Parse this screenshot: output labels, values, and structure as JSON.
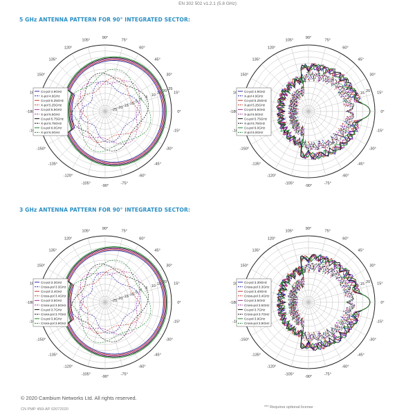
{
  "header": {
    "standard_note": "EN 302 502 v1.2.1 (5.8 GHz)"
  },
  "sections": [
    {
      "title": "5 GHz ANTENNA PATTERN FOR 90° INTEGRATED SECTOR:"
    },
    {
      "title": "3 GHz ANTENNA PATTERN FOR 90° INTEGRATED SECTOR:"
    }
  ],
  "chart_data": [
    {
      "type": "line",
      "polar": true,
      "band": "5GHz",
      "pattern": "sector",
      "angle_ticks": [
        "0°",
        "15°",
        "30°",
        "45°",
        "60°",
        "75°",
        "90°",
        "105°",
        "120°",
        "135°",
        "150°",
        "165°",
        "-180°",
        "-165°",
        "-150°",
        "-135°",
        "-120°",
        "-105°",
        "-90°",
        "-75°",
        "-60°",
        "-45°",
        "-30°",
        "-15°"
      ],
      "radial_ticks": [
        "25",
        "20",
        "15",
        "10",
        "5",
        "0",
        "-5",
        "-10",
        "-15",
        "-20",
        "-25"
      ],
      "rlim": [
        -30,
        25
      ],
      "grid": true,
      "legend_position": "left",
      "series": [
        {
          "name": "Co-pol 4.9GHz",
          "color": "#2a2aa8",
          "dash": "solid"
        },
        {
          "name": "X-pol 4.9GHz",
          "color": "#2a2aa8",
          "dash": "dashed"
        },
        {
          "name": "Co-pol 5.25GHz",
          "color": "#c0392b",
          "dash": "solid"
        },
        {
          "name": "X-pol 5.25GHz",
          "color": "#c0392b",
          "dash": "dashed"
        },
        {
          "name": "Co-pol 5.5GHz",
          "color": "#a0309e",
          "dash": "solid"
        },
        {
          "name": "X-pol 5.5GHz",
          "color": "#a0309e",
          "dash": "dashed"
        },
        {
          "name": "Co-pol 5.75GHz",
          "color": "#111111",
          "dash": "solid"
        },
        {
          "name": "X-pol 5.75GHz",
          "color": "#111111",
          "dash": "dashed"
        },
        {
          "name": "Co-pol 6.0GHz",
          "color": "#1f8a2f",
          "dash": "solid"
        },
        {
          "name": "X-pol 6.0GHz",
          "color": "#1f8a2f",
          "dash": "dashed"
        }
      ]
    },
    {
      "type": "line",
      "polar": true,
      "band": "5GHz",
      "pattern": "elevation",
      "angle_ticks": [
        "0°",
        "15°",
        "30°",
        "45°",
        "60°",
        "75°",
        "90°",
        "105°",
        "120°",
        "135°",
        "150°",
        "165°",
        "-180°",
        "-165°",
        "-150°",
        "-135°",
        "-120°",
        "-105°",
        "-90°",
        "-75°",
        "-60°",
        "-45°",
        "-30°",
        "-15°"
      ],
      "radial_ticks": [
        "20",
        "15",
        "10",
        "5",
        "0"
      ],
      "rlim": [
        -30,
        25
      ],
      "grid": true,
      "legend_position": "left",
      "series": [
        {
          "name": "Co-pol 4.9GHz",
          "color": "#2a2aa8",
          "dash": "solid"
        },
        {
          "name": "X-pol 4.9GHz",
          "color": "#2a2aa8",
          "dash": "dashed"
        },
        {
          "name": "Co-pol 5.25GHz",
          "color": "#c0392b",
          "dash": "solid"
        },
        {
          "name": "X-pol 5.25GHz",
          "color": "#c0392b",
          "dash": "dashed"
        },
        {
          "name": "Co-pol 5.5GHz",
          "color": "#a0309e",
          "dash": "solid"
        },
        {
          "name": "X-pol 5.5GHz",
          "color": "#a0309e",
          "dash": "dashed"
        },
        {
          "name": "Co-pol 5.75GHz",
          "color": "#111111",
          "dash": "solid"
        },
        {
          "name": "X-pol 5.75GHz",
          "color": "#111111",
          "dash": "dashed"
        },
        {
          "name": "Co-pol 6.0GHz",
          "color": "#1f8a2f",
          "dash": "solid"
        },
        {
          "name": "X-pol 6.0GHz",
          "color": "#1f8a2f",
          "dash": "dashed"
        }
      ]
    },
    {
      "type": "line",
      "polar": true,
      "band": "3GHz",
      "pattern": "sector",
      "angle_ticks": [
        "0°",
        "15°",
        "30°",
        "45°",
        "60°",
        "75°",
        "90°",
        "105°",
        "120°",
        "135°",
        "150°",
        "165°",
        "-180°",
        "-165°",
        "-150°",
        "-135°",
        "-120°",
        "-105°",
        "-90°",
        "-75°",
        "-60°",
        "-45°",
        "-30°",
        "-15°"
      ],
      "radial_ticks": [
        "20",
        "15",
        "10",
        "5",
        "0",
        "-5",
        "-10",
        "-15",
        "-20",
        "-25"
      ],
      "rlim": [
        -30,
        25
      ],
      "grid": true,
      "legend_position": "left",
      "series": [
        {
          "name": "Co-pol 3.3GHz",
          "color": "#2a2aa8",
          "dash": "solid"
        },
        {
          "name": "Cross-pol 3.3GHz",
          "color": "#2a2aa8",
          "dash": "dashed"
        },
        {
          "name": "Co-pol 3.4GHz",
          "color": "#c0392b",
          "dash": "solid"
        },
        {
          "name": "Cross-pol 3.4GHz",
          "color": "#c0392b",
          "dash": "dashed"
        },
        {
          "name": "Co-pol 3.5GHz",
          "color": "#a0309e",
          "dash": "solid"
        },
        {
          "name": "Cross-pol 3.5GHz",
          "color": "#a0309e",
          "dash": "dashed"
        },
        {
          "name": "Co-pol 3.7GHz",
          "color": "#111111",
          "dash": "solid"
        },
        {
          "name": "Cross-pol 3.7GHz",
          "color": "#111111",
          "dash": "dashed"
        },
        {
          "name": "Co-pol 3.9GHz",
          "color": "#1f8a2f",
          "dash": "solid"
        },
        {
          "name": "Cross-pol 3.9GHz",
          "color": "#1f8a2f",
          "dash": "dashed"
        }
      ]
    },
    {
      "type": "line",
      "polar": true,
      "band": "3GHz",
      "pattern": "elevation",
      "angle_ticks": [
        "0°",
        "15°",
        "30°",
        "45°",
        "60°",
        "75°",
        "90°",
        "105°",
        "120°",
        "135°",
        "150°",
        "165°",
        "-180°",
        "-165°",
        "-150°",
        "-135°",
        "-120°",
        "-105°",
        "-90°",
        "-75°",
        "-60°",
        "-45°",
        "-30°",
        "-15°"
      ],
      "radial_ticks": [
        "20",
        "15",
        "10",
        "5",
        "0"
      ],
      "rlim": [
        -30,
        25
      ],
      "grid": true,
      "legend_position": "left",
      "series": [
        {
          "name": "Co-pol 3.30GHz",
          "color": "#2a2aa8",
          "dash": "solid"
        },
        {
          "name": "Cross-pol 3.3GHz",
          "color": "#2a2aa8",
          "dash": "dashed"
        },
        {
          "name": "Co-pol 3.40GHz",
          "color": "#c0392b",
          "dash": "solid"
        },
        {
          "name": "Cross-pol 3.4GHz",
          "color": "#c0392b",
          "dash": "dashed"
        },
        {
          "name": "Co-pol 3.5GHz",
          "color": "#a0309e",
          "dash": "solid"
        },
        {
          "name": "Cross-pol 3.5GHz",
          "color": "#a0309e",
          "dash": "dashed"
        },
        {
          "name": "Co-pol 3.7GHz",
          "color": "#111111",
          "dash": "solid"
        },
        {
          "name": "Cross-pol 3.7GHz",
          "color": "#111111",
          "dash": "dashed"
        },
        {
          "name": "Co-pol 3.9GHz",
          "color": "#1f8a2f",
          "dash": "solid"
        },
        {
          "name": "Cross-pol 3.9GHz",
          "color": "#1f8a2f",
          "dash": "dashed"
        }
      ]
    }
  ],
  "footer": {
    "copyright": "© 2020 Cambium Networks Ltd. All rights reserved.",
    "doc_code": "CN PMP 450i AP 02072020",
    "license_note": "*** Requires optional license"
  }
}
